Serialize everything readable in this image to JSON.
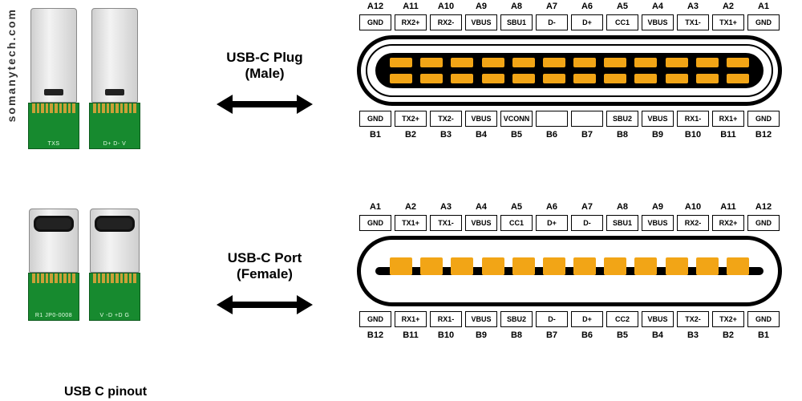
{
  "watermark": "somanytech.com",
  "caption": "USB C pinout",
  "plug": {
    "title_line1": "USB-C Plug",
    "title_line2": "(Male)",
    "top_nums": [
      "A12",
      "A11",
      "A10",
      "A9",
      "A8",
      "A7",
      "A6",
      "A5",
      "A4",
      "A3",
      "A2",
      "A1"
    ],
    "top_sigs": [
      "GND",
      "RX2+",
      "RX2-",
      "VBUS",
      "SBU1",
      "D-",
      "D+",
      "CC1",
      "VBUS",
      "TX1-",
      "TX1+",
      "GND"
    ],
    "bottom_sigs": [
      "GND",
      "TX2+",
      "TX2-",
      "VBUS",
      "VCONN",
      "",
      "",
      "SBU2",
      "VBUS",
      "RX1-",
      "RX1+",
      "GND"
    ],
    "bottom_nums": [
      "B1",
      "B2",
      "B3",
      "B4",
      "B5",
      "B6",
      "B7",
      "B8",
      "B9",
      "B10",
      "B11",
      "B12"
    ],
    "pcb_left": "TXS",
    "pcb_right": "D+ D- V"
  },
  "port": {
    "title_line1": "USB-C Port",
    "title_line2": "(Female)",
    "top_nums": [
      "A1",
      "A2",
      "A3",
      "A4",
      "A5",
      "A6",
      "A7",
      "A8",
      "A9",
      "A10",
      "A11",
      "A12"
    ],
    "top_sigs": [
      "GND",
      "TX1+",
      "TX1-",
      "VBUS",
      "CC1",
      "D+",
      "D-",
      "SBU1",
      "VBUS",
      "RX2-",
      "RX2+",
      "GND"
    ],
    "bottom_sigs": [
      "GND",
      "RX1+",
      "RX1-",
      "VBUS",
      "SBU2",
      "D-",
      "D+",
      "CC2",
      "VBUS",
      "TX2-",
      "TX2+",
      "GND"
    ],
    "bottom_nums": [
      "B12",
      "B11",
      "B10",
      "B9",
      "B8",
      "B7",
      "B6",
      "B5",
      "B4",
      "B3",
      "B2",
      "B1"
    ],
    "pcb_left": "R1    JP0-0008",
    "pcb_right": "V -D +D  G"
  },
  "colors": {
    "contact": "#f2a516",
    "pcb": "#178a2f",
    "outline": "#000000"
  }
}
